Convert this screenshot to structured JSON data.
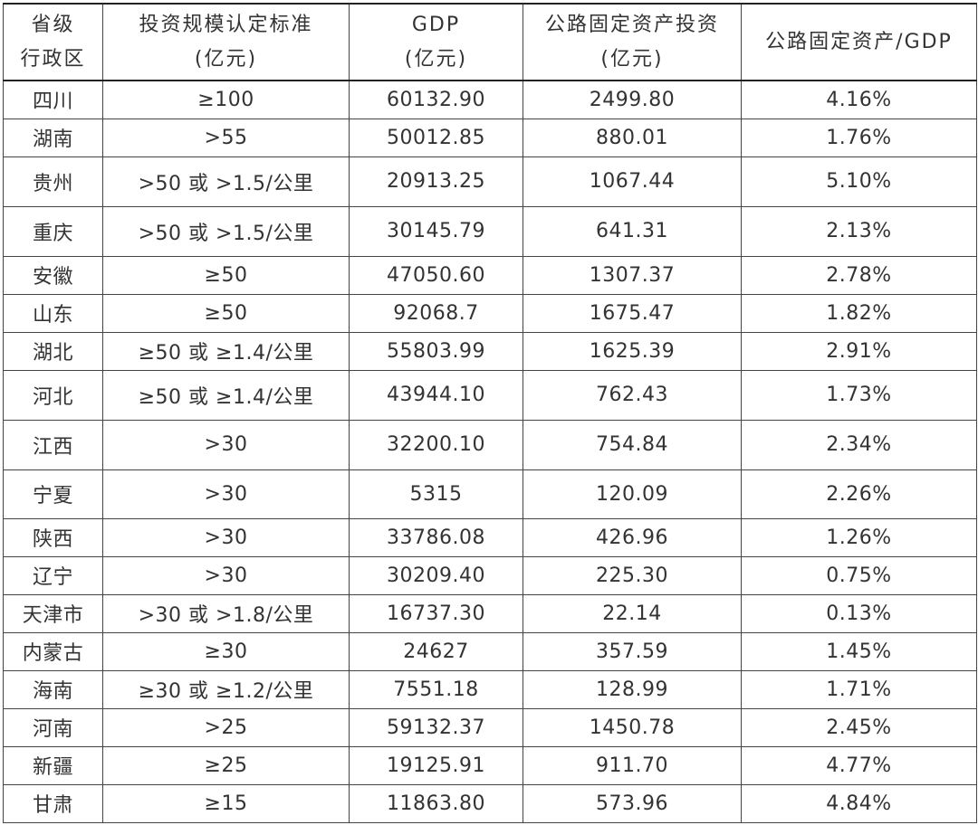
{
  "table": {
    "headers": [
      [
        "省级",
        "行政区"
      ],
      [
        "投资规模认定标准",
        "(亿元)"
      ],
      [
        "GDP",
        "(亿元)"
      ],
      [
        "公路固定资产投资",
        "(亿元)"
      ],
      [
        "公路固定资产/GDP",
        ""
      ]
    ],
    "rows": [
      [
        "四川",
        "≥100",
        "60132.90",
        "2499.80",
        "4.16%"
      ],
      [
        "湖南",
        ">55",
        "50012.85",
        "880.01",
        "1.76%"
      ],
      [
        "贵州",
        ">50 或 >1.5/公里",
        "20913.25",
        "1067.44",
        "5.10%"
      ],
      [
        "重庆",
        ">50 或 >1.5/公里",
        "30145.79",
        "641.31",
        "2.13%"
      ],
      [
        "安徽",
        "≥50",
        "47050.60",
        "1307.37",
        "2.78%"
      ],
      [
        "山东",
        "≥50",
        "92068.7",
        "1675.47",
        "1.82%"
      ],
      [
        "湖北",
        "≥50 或 ≥1.4/公里",
        "55803.99",
        "1625.39",
        "2.91%"
      ],
      [
        "河北",
        "≥50 或 ≥1.4/公里",
        "43944.10",
        "762.43",
        "1.73%"
      ],
      [
        "江西",
        ">30",
        "32200.10",
        "754.84",
        "2.34%"
      ],
      [
        "宁夏",
        ">30",
        "5315",
        "120.09",
        "2.26%"
      ],
      [
        "陕西",
        ">30",
        "33786.08",
        "426.96",
        "1.26%"
      ],
      [
        "辽宁",
        ">30",
        "30209.40",
        "225.30",
        "0.75%"
      ],
      [
        "天津市",
        ">30 或 >1.8/公里",
        "16737.30",
        "22.14",
        "0.13%"
      ],
      [
        "内蒙古",
        "≥30",
        "24627",
        "357.59",
        "1.45%"
      ],
      [
        "海南",
        "≥30 或 ≥1.2/公里",
        "7551.18",
        "128.99",
        "1.71%"
      ],
      [
        "河南",
        ">25",
        "59132.37",
        "1450.78",
        "2.45%"
      ],
      [
        "新疆",
        "≥25",
        "19125.91",
        "911.70",
        "4.77%"
      ],
      [
        "甘肃",
        "≥15",
        "11863.80",
        "573.96",
        "4.84%"
      ]
    ]
  }
}
